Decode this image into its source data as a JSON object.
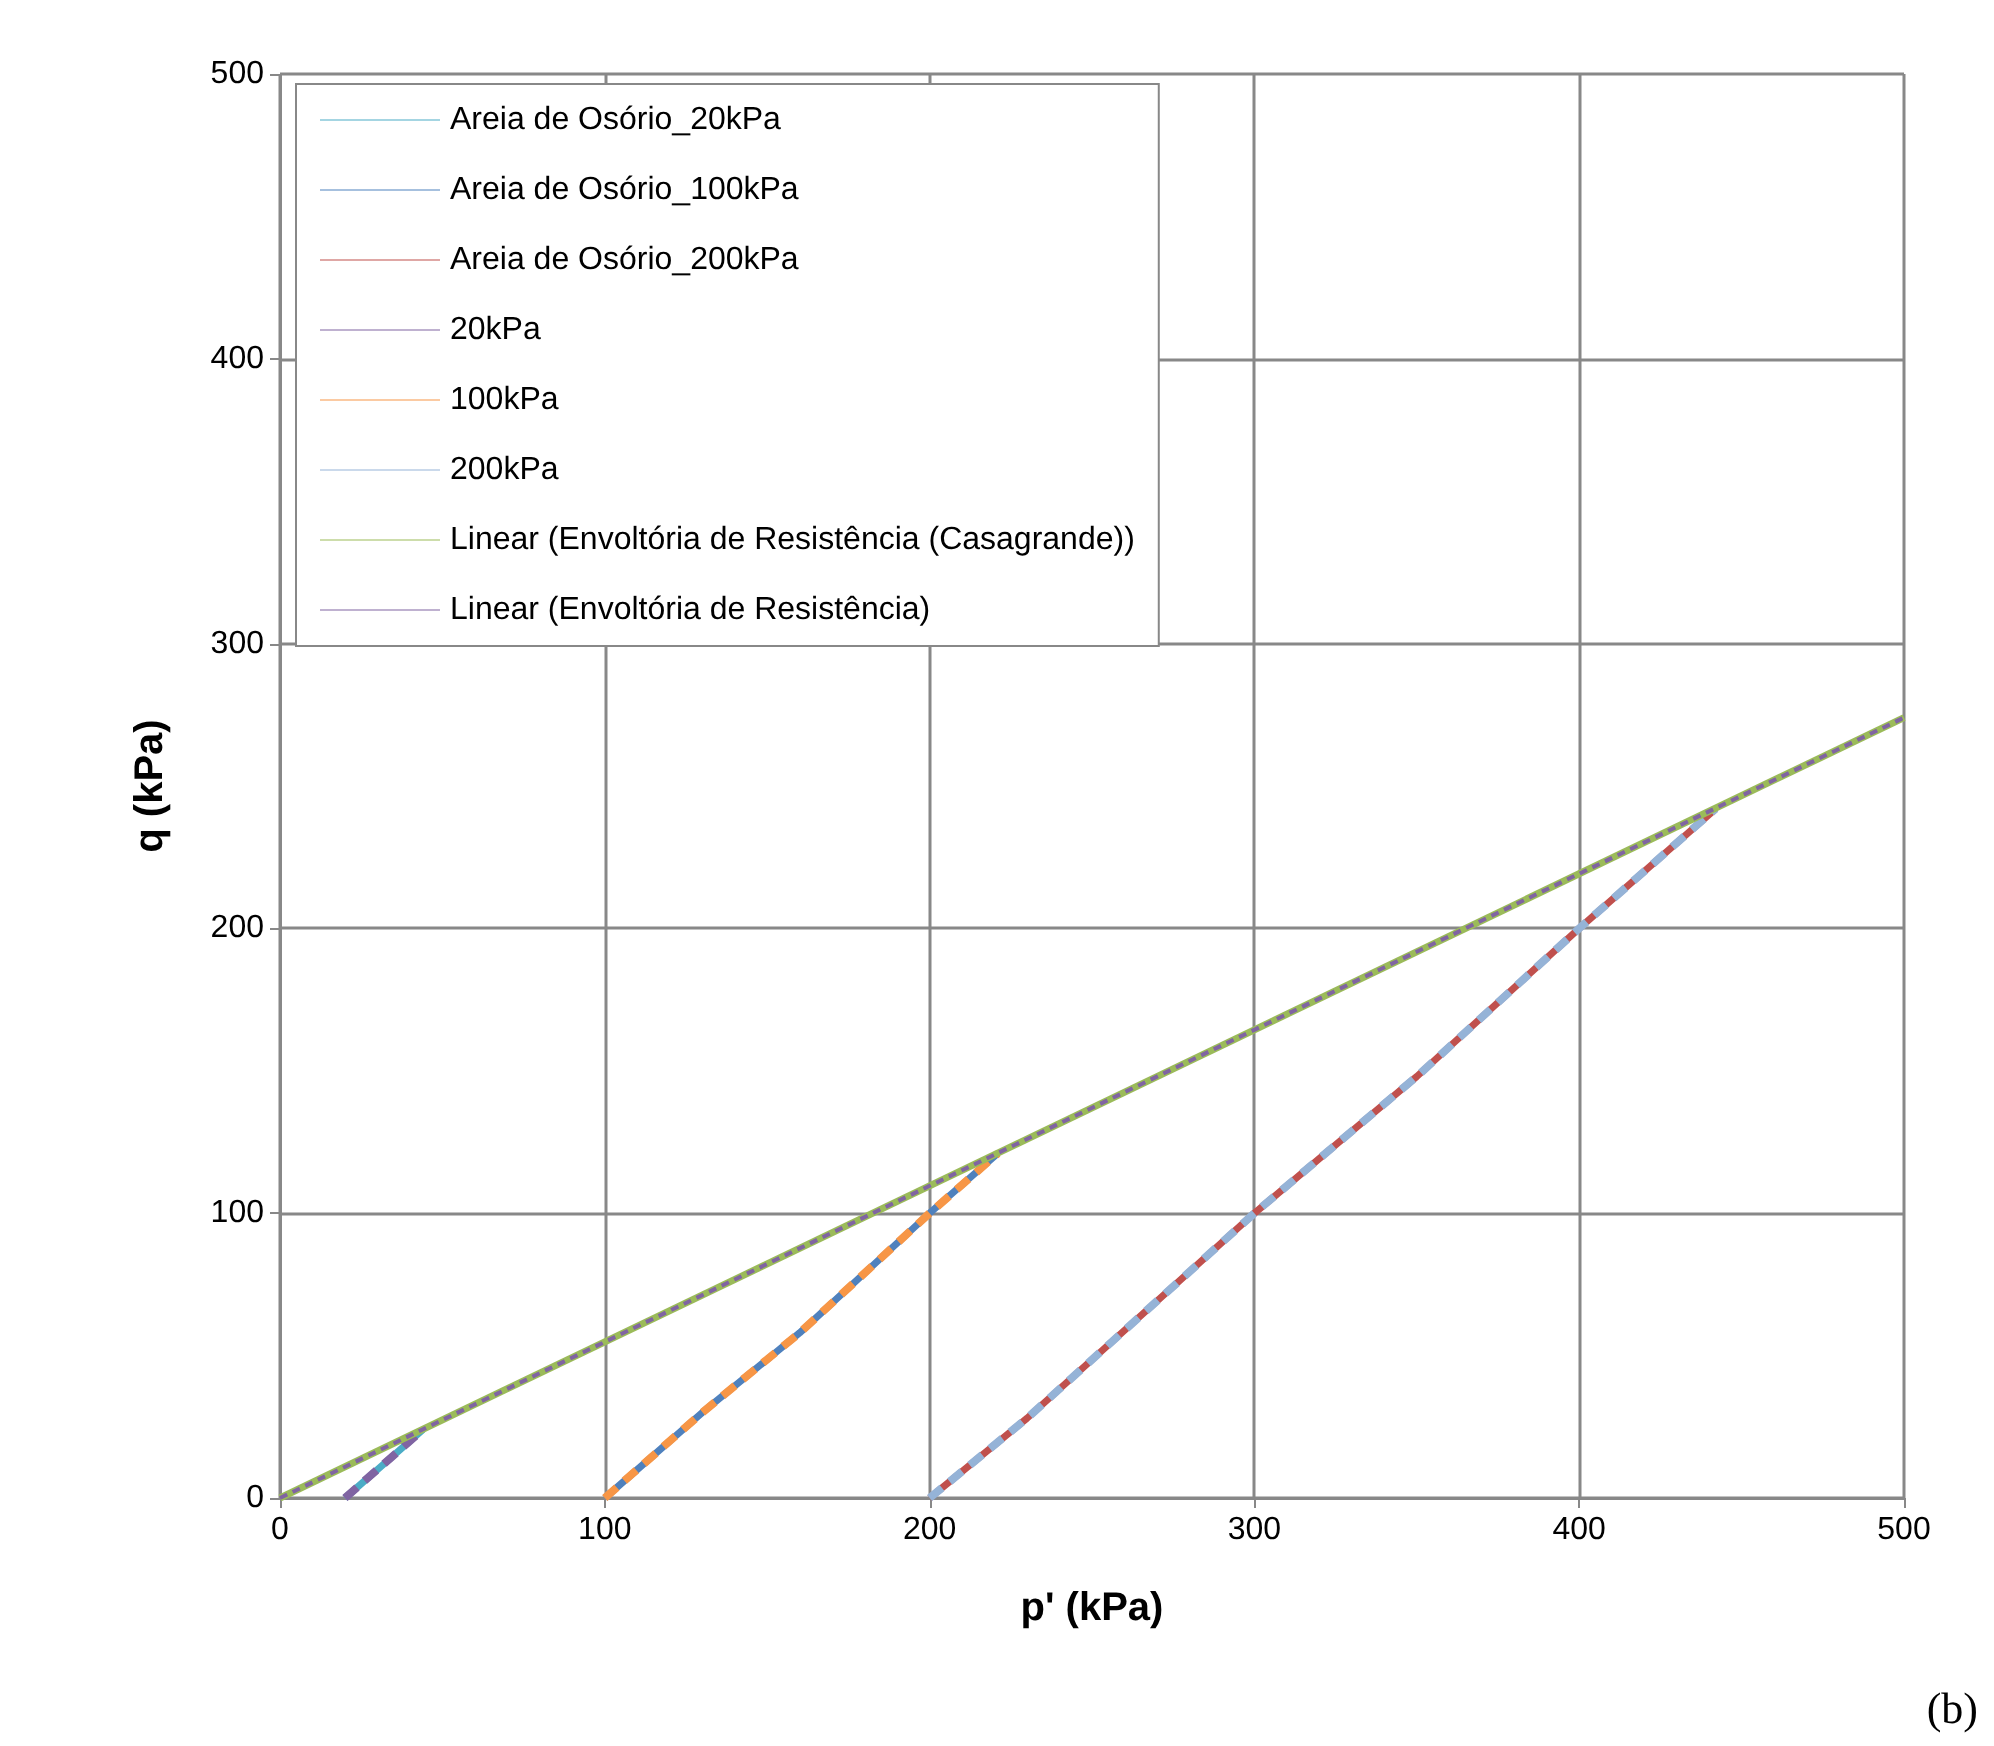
{
  "chart_data": {
    "type": "line",
    "xlabel": "p' (kPa)",
    "ylabel": "q (kPa)",
    "xlim": [
      0,
      500
    ],
    "xticks": [
      0,
      100,
      200,
      300,
      400,
      500
    ],
    "ylim": [
      0,
      500
    ],
    "yticks": [
      0,
      100,
      200,
      300,
      400,
      500
    ],
    "grid": true,
    "legend": "top left",
    "marker": "none",
    "annotations": [
      "(b)"
    ],
    "series": [
      {
        "name": "Areia de Osório_20kPa",
        "color": "#4bacc6",
        "line_style": "solid",
        "x": [
          20,
          30,
          44
        ],
        "values": [
          0,
          10,
          24
        ]
      },
      {
        "name": "Areia de Osório_100kPa",
        "color": "#4f81bd",
        "line_style": "solid",
        "x": [
          100,
          130,
          160,
          200,
          221
        ],
        "values": [
          0,
          30,
          58,
          100,
          121
        ]
      },
      {
        "name": "Areia de Osório_200kPa",
        "color": "#c0504d",
        "line_style": "solid",
        "x": [
          200,
          230,
          300,
          350,
          400,
          442
        ],
        "values": [
          0,
          28,
          100,
          148,
          200,
          242
        ]
      },
      {
        "name": "20kPa",
        "color": "#8064a2",
        "line_style": "dashed",
        "x": [
          20,
          30,
          44
        ],
        "values": [
          0,
          10,
          24
        ]
      },
      {
        "name": "100kPa",
        "color": "#f79646",
        "line_style": "dashed",
        "x": [
          100,
          130,
          160,
          200,
          221
        ],
        "values": [
          0,
          30,
          58,
          100,
          121
        ]
      },
      {
        "name": "200kPa",
        "color": "#95b3d7",
        "line_style": "dashed",
        "x": [
          200,
          230,
          300,
          350,
          400,
          442
        ],
        "values": [
          0,
          28,
          100,
          148,
          200,
          242
        ]
      },
      {
        "name": "Linear (Envoltória de Resistência (Casagrande))",
        "color": "#9bbb59",
        "line_style": "solid",
        "x": [
          0,
          500
        ],
        "values": [
          0,
          274
        ]
      },
      {
        "name": "Linear (Envoltória de Resistência)",
        "color": "#8064a2",
        "line_style": "dotted",
        "x": [
          0,
          500
        ],
        "values": [
          0,
          274
        ]
      }
    ]
  }
}
